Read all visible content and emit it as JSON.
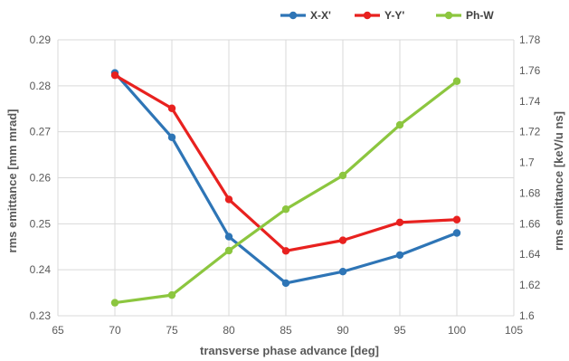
{
  "chart_data": {
    "type": "line",
    "title": "",
    "xlabel": "transverse phase advance [deg]",
    "ylabel": "rms emittance [mm mrad]",
    "y2label": "rms emittance [keV/u ns]",
    "xlim": [
      65,
      105
    ],
    "xticks": [
      65,
      70,
      75,
      80,
      85,
      90,
      95,
      100,
      105
    ],
    "ylim": [
      0.23,
      0.29
    ],
    "yticks": [
      "0.23",
      "0.24",
      "0.25",
      "0.26",
      "0.27",
      "0.28",
      "0.29"
    ],
    "y2lim": [
      1.6,
      1.78
    ],
    "y2ticks": [
      "1.6",
      "1.62",
      "1.64",
      "1.66",
      "1.68",
      "1.7",
      "1.72",
      "1.74",
      "1.76",
      "1.78"
    ],
    "grid": true,
    "legend_position": "top-right",
    "x": [
      70,
      75,
      80,
      85,
      90,
      95,
      100
    ],
    "series": [
      {
        "name": "X-X'",
        "axis": "left",
        "color": "#2e75b6",
        "values": [
          0.2828,
          0.2688,
          0.2472,
          0.2371,
          0.2396,
          0.2432,
          0.248
        ]
      },
      {
        "name": "Y-Y'",
        "axis": "left",
        "color": "#e8211f",
        "values": [
          0.2823,
          0.2751,
          0.2553,
          0.2441,
          0.2464,
          0.2503,
          0.2509
        ]
      },
      {
        "name": "Ph-W",
        "axis": "right",
        "color": "#8cc63f",
        "values": [
          1.6085,
          1.6135,
          1.6425,
          1.6695,
          1.6915,
          1.7245,
          1.753
        ]
      }
    ]
  }
}
